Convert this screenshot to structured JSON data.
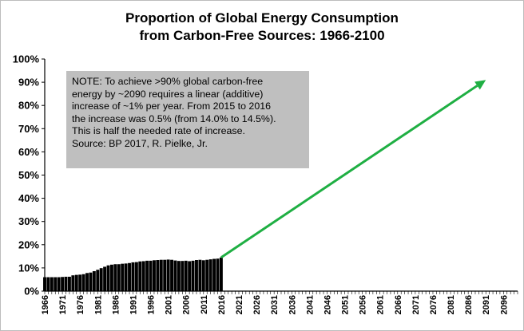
{
  "chart_data": {
    "type": "bar",
    "title": "Proportion of Global Energy Consumption",
    "subtitle": "from Carbon-Free Sources:  1966-2100",
    "xlabel": "",
    "ylabel": "",
    "ylim": [
      0,
      100
    ],
    "xlim": [
      1966,
      2100
    ],
    "yticks": [
      "0%",
      "10%",
      "20%",
      "30%",
      "40%",
      "50%",
      "60%",
      "70%",
      "80%",
      "90%",
      "100%"
    ],
    "xticks": [
      "1966",
      "1971",
      "1976",
      "1981",
      "1986",
      "1991",
      "1996",
      "2001",
      "2006",
      "2011",
      "2016",
      "2021",
      "2026",
      "2031",
      "2036",
      "2041",
      "2046",
      "2051",
      "2056",
      "2061",
      "2066",
      "2071",
      "2076",
      "2081",
      "2086",
      "2091",
      "2096"
    ],
    "categories": [
      1966,
      1967,
      1968,
      1969,
      1970,
      1971,
      1972,
      1973,
      1974,
      1975,
      1976,
      1977,
      1978,
      1979,
      1980,
      1981,
      1982,
      1983,
      1984,
      1985,
      1986,
      1987,
      1988,
      1989,
      1990,
      1991,
      1992,
      1993,
      1994,
      1995,
      1996,
      1997,
      1998,
      1999,
      2000,
      2001,
      2002,
      2003,
      2004,
      2005,
      2006,
      2007,
      2008,
      2009,
      2010,
      2011,
      2012,
      2013,
      2014,
      2015,
      2016
    ],
    "values": [
      6.0,
      6.0,
      6.0,
      6.0,
      6.0,
      6.1,
      6.2,
      6.2,
      6.8,
      7.0,
      7.1,
      7.3,
      7.8,
      8.0,
      8.6,
      9.2,
      9.9,
      10.5,
      11.1,
      11.4,
      11.6,
      11.6,
      11.8,
      11.9,
      12.1,
      12.4,
      12.5,
      12.8,
      12.9,
      13.1,
      13.1,
      13.3,
      13.4,
      13.5,
      13.5,
      13.6,
      13.5,
      13.2,
      13.0,
      13.0,
      13.1,
      12.9,
      13.1,
      13.4,
      13.5,
      13.3,
      13.5,
      13.7,
      13.9,
      14.0,
      14.5
    ],
    "trend_arrow": {
      "from": {
        "x": 2016,
        "y": 14.5
      },
      "to": {
        "x": 2091,
        "y": 91
      }
    },
    "annotation": [
      "NOTE: To achieve >90% global carbon-free",
      "energy by ~2090 requires a linear (additive)",
      "increase of ~1% per year. From 2015 to 2016",
      "the increase was 0.5% (from 14.0% to 14.5%).",
      "This is half the needed rate of increase.",
      "Source: BP 2017, R. Pielke, Jr."
    ],
    "bar_color": "#000000",
    "arrow_color": "#1faf43",
    "annotation_bg": "#bfbfbf"
  }
}
